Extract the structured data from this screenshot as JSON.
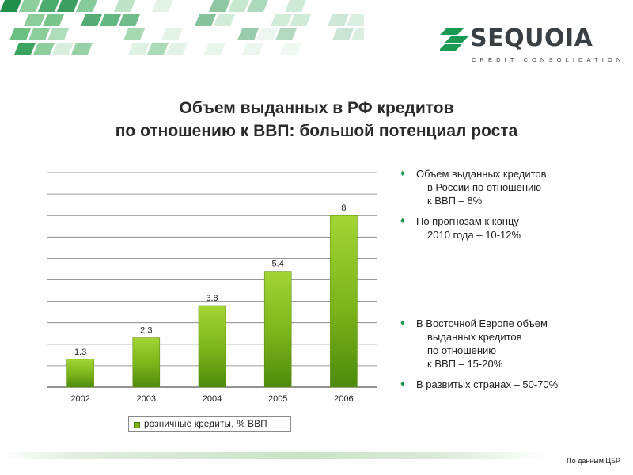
{
  "logo": {
    "name": "SEQUOIA",
    "subtitle": "CREDIT CONSOLIDATION"
  },
  "title": {
    "line1": "Объем выданных в РФ кредитов",
    "line2": "по отношению к ВВП: большой потенциал роста"
  },
  "chart_data": {
    "type": "bar",
    "categories": [
      "2002",
      "2003",
      "2004",
      "2005",
      "2006"
    ],
    "values": [
      1.3,
      2.3,
      3.8,
      5.4,
      8
    ],
    "value_labels": [
      "1.3",
      "2.3",
      "3.8",
      "5.4",
      "8"
    ],
    "series": [
      {
        "name": "розничные кредиты, % ВВП",
        "values": [
          1.3,
          2.3,
          3.8,
          5.4,
          8
        ]
      }
    ],
    "ylim": [
      0,
      10
    ],
    "grid": true,
    "legend_position": "bottom",
    "bar_color": "#7bb31a"
  },
  "bullets_top": [
    {
      "lines": [
        "Объем выданных кредитов",
        "в России по отношению",
        "к ВВП – 8%"
      ]
    },
    {
      "lines": [
        "По прогнозам к концу",
        "2010 года – 10-12%"
      ]
    }
  ],
  "bullets_bottom": [
    {
      "lines": [
        "В Восточной Европе объем",
        "выданных кредитов",
        "по отношению",
        "к ВВП – 15-20%"
      ]
    },
    {
      "lines": [
        "В развитых странах – 50-70%"
      ]
    }
  ],
  "source_note": "По данным ЦБР",
  "colors": {
    "accent_green": "#1a9a52",
    "bar_green": "#7bb31a",
    "text": "#2b2b2b"
  }
}
